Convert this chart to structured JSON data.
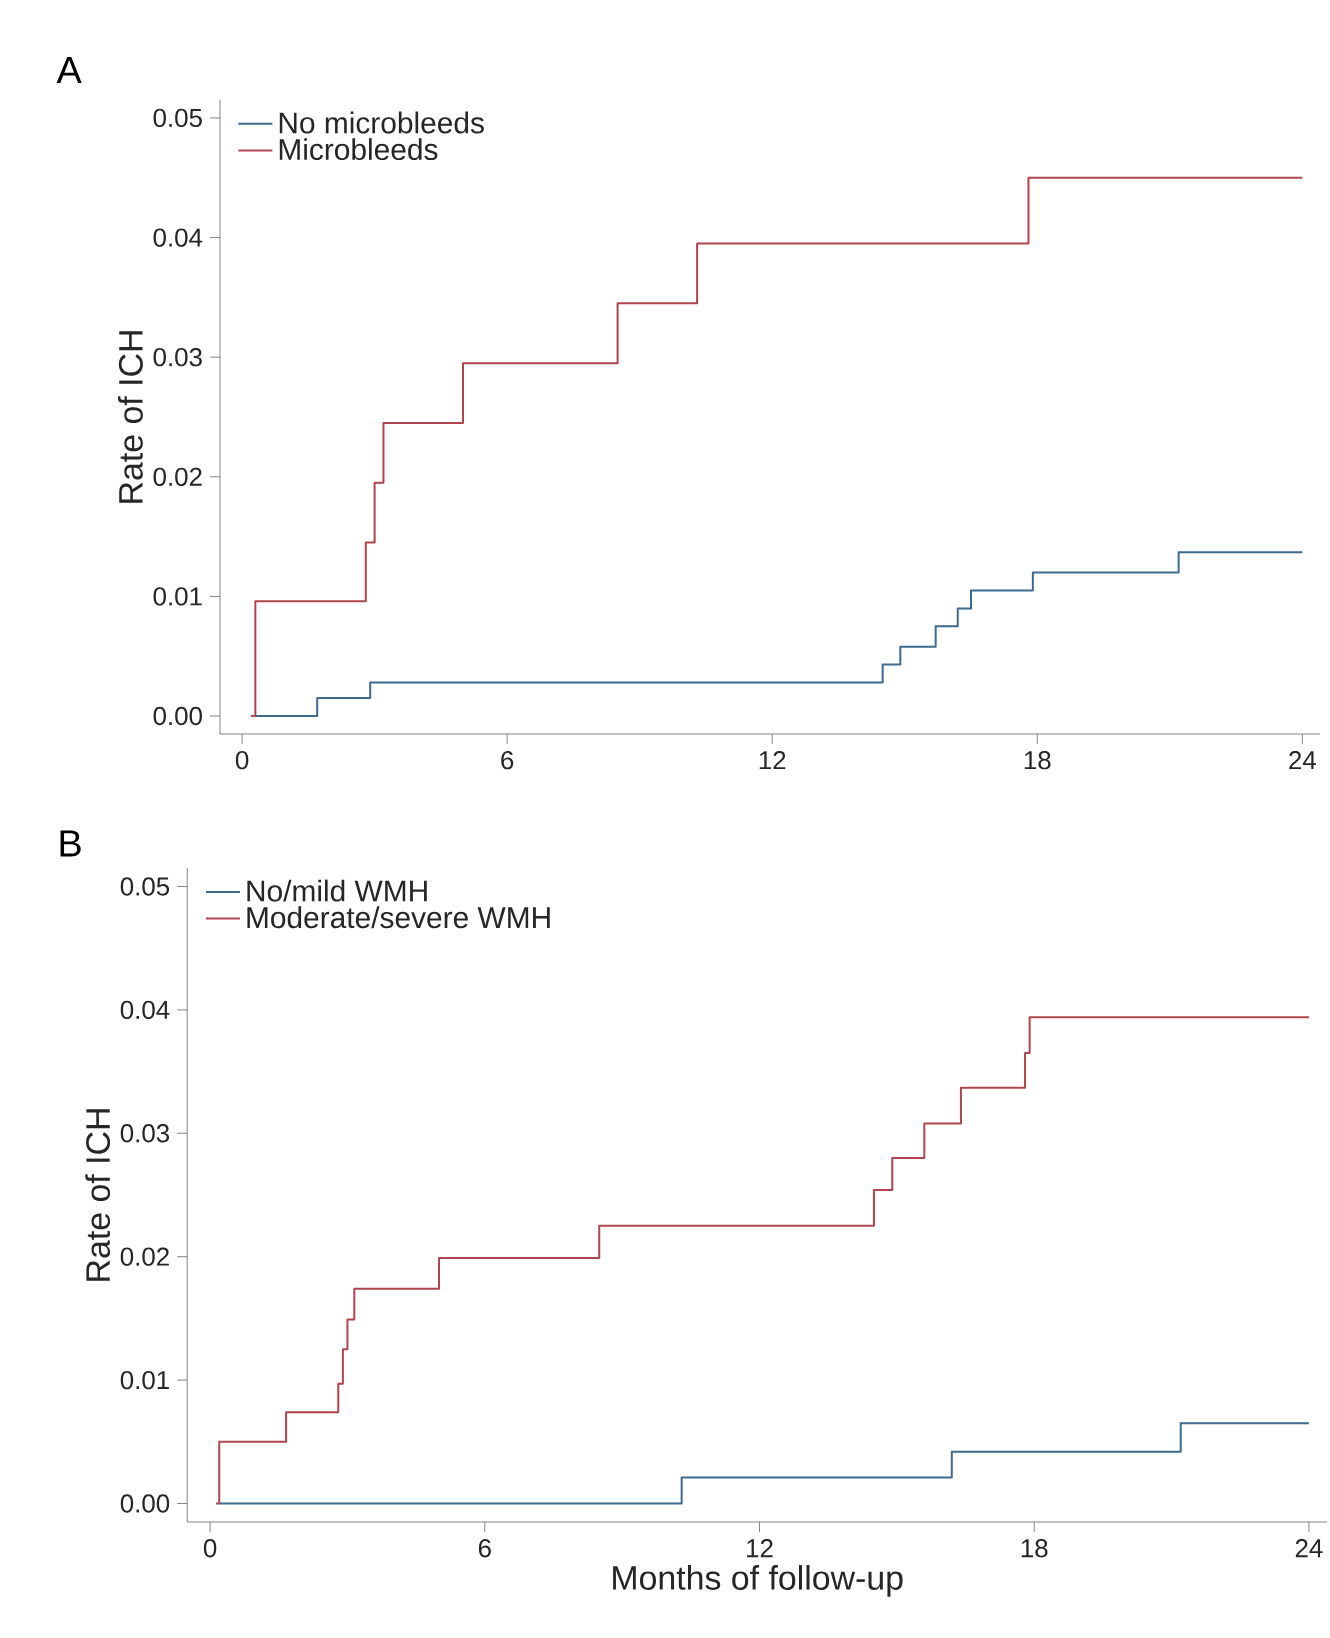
{
  "chart_data": [
    {
      "type": "step",
      "title": "A",
      "ylabel": "Rate of ICH",
      "xlim": [
        -0.5,
        24.4
      ],
      "ylim": [
        -0.0015,
        0.0515
      ],
      "xticks": [
        0,
        6,
        12,
        18,
        24
      ],
      "yticks": [
        {
          "value": 0,
          "label": "0.00"
        },
        {
          "value": 0.01,
          "label": "0.01"
        },
        {
          "value": 0.02,
          "label": "0.02"
        },
        {
          "value": 0.03,
          "label": "0.03"
        },
        {
          "value": 0.04,
          "label": "0.04"
        },
        {
          "value": 0.05,
          "label": "0.05"
        }
      ],
      "legend": "top left",
      "grid": false,
      "series": [
        {
          "name": "No microbleeds",
          "color": "#3d6a8f",
          "x": [
            0.2,
            1.7,
            2.9,
            14.5,
            14.9,
            15.7,
            16.2,
            16.5,
            17.9,
            21.2,
            24
          ],
          "values": [
            0,
            0.0015,
            0.0028,
            0.0043,
            0.0058,
            0.0075,
            0.009,
            0.0105,
            0.012,
            0.0137,
            0.0137
          ]
        },
        {
          "name": "Microbleeds",
          "color": "#b0444f",
          "x": [
            0.2,
            0.3,
            2.8,
            3.0,
            3.2,
            5.0,
            8.5,
            10.3,
            17.8,
            24
          ],
          "values": [
            0,
            0.0096,
            0.0145,
            0.0195,
            0.0245,
            0.0295,
            0.0345,
            0.0395,
            0.045,
            0.045
          ]
        }
      ]
    },
    {
      "type": "step",
      "title": "B",
      "ylabel": "Rate of ICH",
      "xlabel": "Months of follow-up",
      "xlim": [
        -0.5,
        24.4
      ],
      "ylim": [
        -0.0015,
        0.0515
      ],
      "xticks": [
        0,
        6,
        12,
        18,
        24
      ],
      "yticks": [
        {
          "value": 0,
          "label": "0.00"
        },
        {
          "value": 0.01,
          "label": "0.01"
        },
        {
          "value": 0.02,
          "label": "0.02"
        },
        {
          "value": 0.03,
          "label": "0.03"
        },
        {
          "value": 0.04,
          "label": "0.04"
        },
        {
          "value": 0.05,
          "label": "0.05"
        }
      ],
      "legend": "top left",
      "grid": false,
      "series": [
        {
          "name": "No/mild WMH",
          "color": "#3d6a8f",
          "x": [
            0.2,
            10.3,
            16.2,
            21.2,
            24
          ],
          "values": [
            0,
            0.0021,
            0.0042,
            0.0065,
            0.0065
          ]
        },
        {
          "name": "Moderate/severe WMH",
          "color": "#b0444f",
          "x": [
            0.13,
            0.2,
            1.66,
            2.8,
            2.9,
            3.0,
            3.15,
            5.0,
            8.5,
            14.5,
            14.9,
            15.6,
            16.4,
            17.8,
            17.9,
            24
          ],
          "values": [
            0,
            0.005,
            0.0074,
            0.0097,
            0.0125,
            0.0149,
            0.0174,
            0.0199,
            0.0225,
            0.0254,
            0.028,
            0.0308,
            0.0337,
            0.0365,
            0.0394,
            0.0394
          ]
        }
      ]
    }
  ]
}
